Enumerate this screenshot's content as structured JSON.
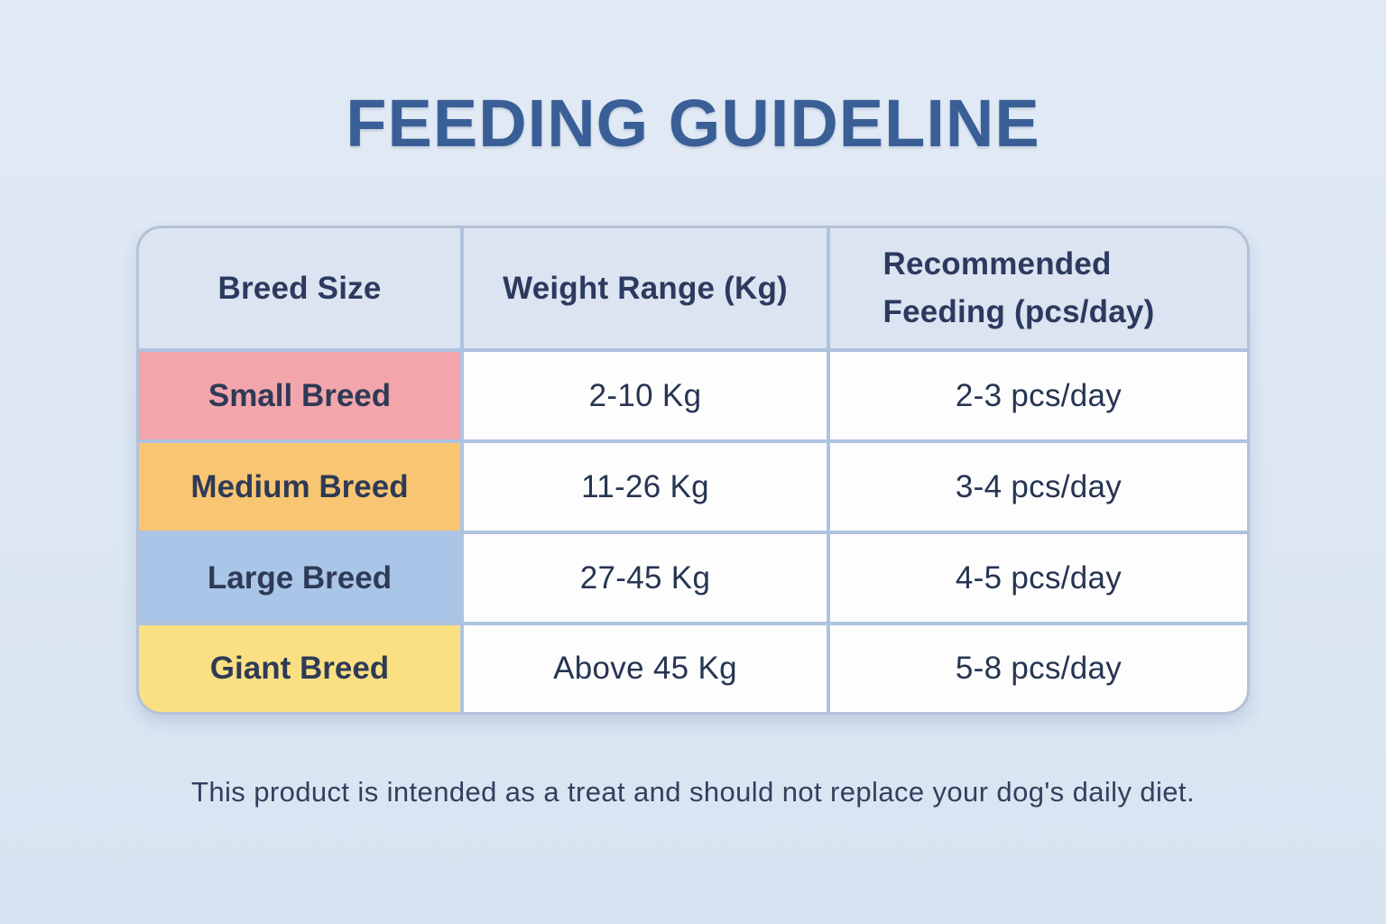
{
  "page": {
    "title": "FEEDING GUIDELINE",
    "footnote": "This product is intended as a treat and should not replace your dog's daily diet."
  },
  "colors": {
    "page_background": "#dce7f3",
    "title_text": "#3a5f97",
    "table_text": "#2b3a5e",
    "grid_line": "#aec3e0",
    "table_border": "#b4c1d8",
    "header_background": "#dce3f1",
    "value_cell_background": "#fdfdfe",
    "small_breed_cell": "#f2a6ab",
    "medium_breed_cell": "#f8c672",
    "large_breed_cell": "#a9c5e8",
    "giant_breed_cell": "#fbe083"
  },
  "table": {
    "headers": [
      "Breed Size",
      "Weight Range (Kg)",
      "Recommended Feeding (pcs/day)"
    ],
    "rows": [
      {
        "breed": "Small Breed",
        "weight": "2-10 Kg",
        "feeding": "2-3 pcs/day",
        "color": "#f2a6ab"
      },
      {
        "breed": "Medium Breed",
        "weight": "11-26 Kg",
        "feeding": "3-4 pcs/day",
        "color": "#f8c672"
      },
      {
        "breed": "Large Breed",
        "weight": "27-45 Kg",
        "feeding": "4-5 pcs/day",
        "color": "#a9c5e8"
      },
      {
        "breed": "Giant Breed",
        "weight": "Above 45 Kg",
        "feeding": "5-8 pcs/day",
        "color": "#fbe083"
      }
    ]
  },
  "chart_data": {
    "type": "table",
    "title": "FEEDING GUIDELINE",
    "columns": [
      "Breed Size",
      "Weight Range (Kg)",
      "Recommended Feeding (pcs/day)"
    ],
    "rows": [
      [
        "Small Breed",
        "2-10 Kg",
        "2-3 pcs/day"
      ],
      [
        "Medium Breed",
        "11-26 Kg",
        "3-4 pcs/day"
      ],
      [
        "Large Breed",
        "27-45 Kg",
        "4-5 pcs/day"
      ],
      [
        "Giant Breed",
        "Above 45 Kg",
        "5-8 pcs/day"
      ]
    ],
    "row_label_colors": [
      "#f2a6ab",
      "#f8c672",
      "#a9c5e8",
      "#fbe083"
    ],
    "note": "This product is intended as a treat and should not replace your dog's daily diet.",
    "legend_position": "none",
    "grid": true
  }
}
